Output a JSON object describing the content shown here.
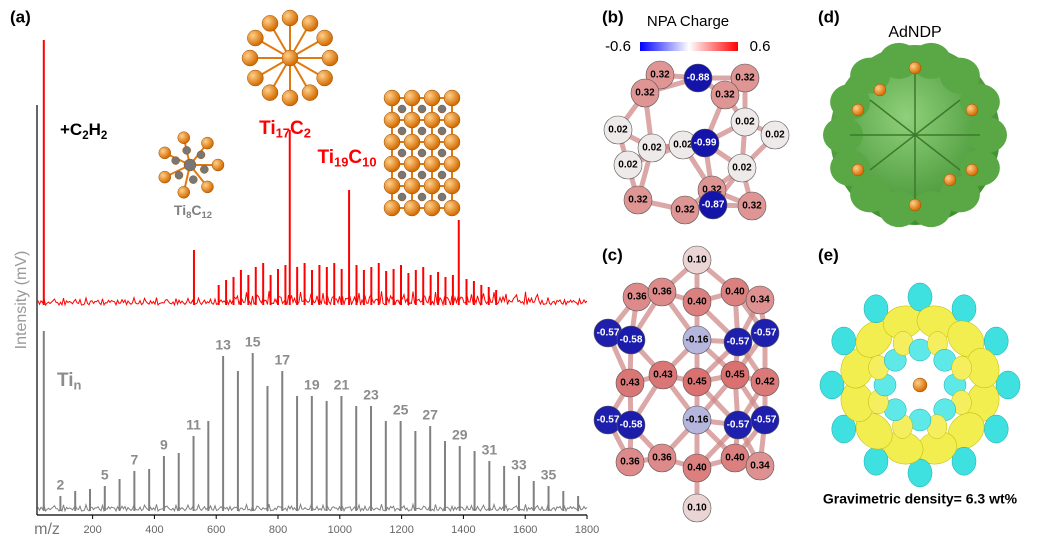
{
  "chart_data": {
    "type": "spectrum",
    "panel_label": "(a)",
    "y_label": "Intensity (mV)",
    "x_label": "m/z",
    "xlim": [
      20,
      1800
    ],
    "xticks": [
      200,
      400,
      600,
      800,
      1000,
      1200,
      1400,
      1600,
      1800
    ],
    "ylim": [
      0,
      270
    ],
    "series": [
      {
        "name": [
          "+C",
          "2",
          "H",
          "2"
        ],
        "color": "#ff0000",
        "x": [
          42,
          528,
          608,
          632,
          656,
          680,
          704,
          728,
          752,
          776,
          800,
          824,
          838,
          862,
          886,
          910,
          934,
          958,
          982,
          1006,
          1030,
          1054,
          1078,
          1102,
          1126,
          1150,
          1174,
          1198,
          1222,
          1246,
          1270,
          1294,
          1318,
          1342,
          1366,
          1385,
          1410,
          1434,
          1458,
          1482,
          1506
        ],
        "values": [
          265,
          55,
          20,
          25,
          28,
          35,
          30,
          38,
          42,
          30,
          36,
          40,
          175,
          38,
          42,
          35,
          40,
          38,
          42,
          36,
          115,
          40,
          35,
          38,
          42,
          34,
          36,
          40,
          32,
          35,
          38,
          30,
          33,
          28,
          30,
          85,
          26,
          24,
          20,
          18,
          15
        ]
      },
      {
        "name": [
          "Ti",
          "n"
        ],
        "color": "#808080",
        "x": [
          42,
          95.7,
          143.6,
          191.5,
          239.4,
          287.2,
          335.1,
          383.0,
          430.8,
          478.7,
          526.6,
          574.4,
          622.3,
          670.2,
          718.1,
          765.9,
          813.8,
          861.7,
          909.5,
          957.4,
          1005.3,
          1053.1,
          1101.0,
          1148.9,
          1196.8,
          1244.6,
          1292.5,
          1340.4,
          1388.2,
          1436.1,
          1484.0,
          1531.8,
          1579.7,
          1627.6,
          1675.5,
          1723.3,
          1771.2
        ],
        "values": [
          180,
          15,
          20,
          22,
          25,
          32,
          40,
          42,
          55,
          58,
          75,
          90,
          155,
          140,
          158,
          125,
          140,
          115,
          115,
          110,
          115,
          105,
          105,
          90,
          90,
          80,
          85,
          70,
          65,
          60,
          50,
          45,
          35,
          30,
          25,
          20,
          15
        ],
        "peak_labels": [
          null,
          "2",
          null,
          null,
          "5",
          null,
          "7",
          null,
          "9",
          null,
          "11",
          null,
          "13",
          null,
          "15",
          null,
          "17",
          null,
          "19",
          null,
          "21",
          null,
          "23",
          null,
          "25",
          null,
          "27",
          null,
          "29",
          null,
          "31",
          null,
          "33",
          null,
          "35",
          null,
          null
        ]
      }
    ],
    "annotations": [
      {
        "text": [
          "Ti",
          "17",
          "C",
          "2"
        ],
        "color": "#ff0000"
      },
      {
        "text": [
          "Ti",
          "19",
          "C",
          "10"
        ],
        "color": "#ff0000"
      },
      {
        "text": [
          "Ti",
          "8",
          "C",
          "12"
        ],
        "color": "#808080"
      }
    ]
  },
  "panels": {
    "b": {
      "label": "(b)",
      "colorbar": {
        "title": "NPA Charge",
        "range": [
          -0.6,
          0.6
        ],
        "ticks": [
          -0.6,
          0.6
        ]
      },
      "atoms": [
        "0.32",
        "-0.88",
        "0.32",
        "0.32",
        "0.32",
        "0.02",
        "0.02",
        "0.02",
        "-0.99",
        "0.02",
        "0.02",
        "0.02",
        "0.02",
        "0.32",
        "0.32",
        "-0.87",
        "0.32",
        "0.32"
      ]
    },
    "c": {
      "label": "(c)",
      "atoms": [
        "0.10",
        "0.36",
        "0.36",
        "0.40",
        "0.40",
        "0.34",
        "-0.57",
        "-0.58",
        "-0.16",
        "-0.57",
        "-0.57",
        "0.43",
        "0.43",
        "0.45",
        "0.45",
        "0.42",
        "-0.57",
        "-0.58",
        "-0.16",
        "-0.57",
        "-0.57",
        "0.36",
        "0.36",
        "0.40",
        "0.40",
        "0.34",
        "0.10"
      ]
    },
    "d": {
      "label": "(d)",
      "title": "AdNDP"
    },
    "e": {
      "label": "(e)",
      "caption": "Gravimetric density= 6.3 wt%"
    }
  }
}
